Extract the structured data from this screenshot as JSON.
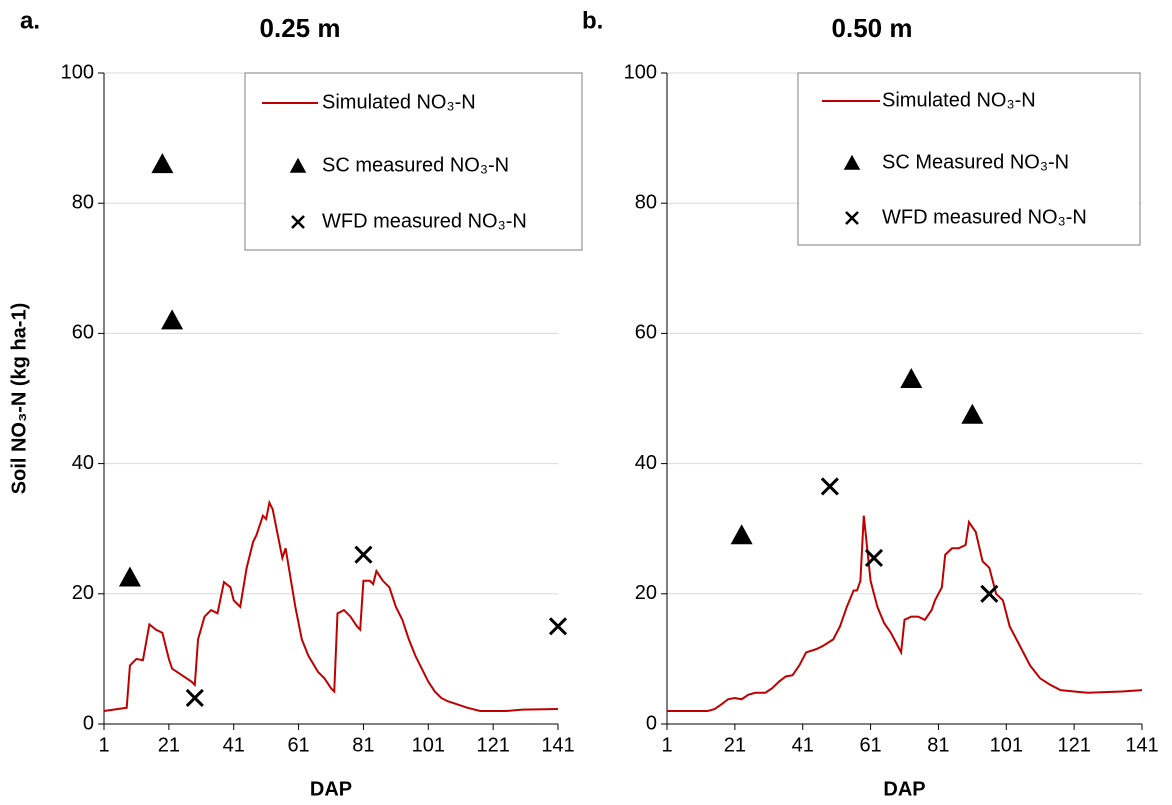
{
  "chart_data": [
    {
      "type": "line",
      "panel_label": "a.",
      "title": "0.25 m",
      "ylabel": "Soil NO₃-N (kg ha-1)",
      "xlabel": "DAP",
      "xlim": [
        1,
        141
      ],
      "xticks": [
        1,
        21,
        41,
        61,
        81,
        101,
        121,
        141
      ],
      "ylim": [
        0,
        100
      ],
      "yticks": [
        0,
        20,
        40,
        60,
        80,
        100
      ],
      "grid": true,
      "series": [
        {
          "name": "Simulated NO₃-N",
          "color": "#c00000",
          "marker": "line",
          "x": [
            1,
            8,
            9,
            11,
            13,
            15,
            17,
            19,
            21,
            22,
            25,
            28,
            29,
            30,
            32,
            34,
            36,
            38,
            40,
            41,
            43,
            45,
            47,
            48,
            50,
            51,
            52,
            53,
            55,
            56,
            57,
            58,
            60,
            62,
            64,
            67,
            69,
            71,
            72,
            73,
            75,
            77,
            79,
            80,
            81,
            83,
            84,
            85,
            87,
            89,
            91,
            93,
            95,
            97,
            99,
            101,
            103,
            105,
            107,
            110,
            113,
            117,
            125,
            130,
            141
          ],
          "values": [
            2,
            2.5,
            9,
            10,
            9.8,
            15.3,
            14.5,
            14,
            10,
            8.5,
            7.5,
            6.5,
            6,
            13,
            16.5,
            17.5,
            17,
            21.8,
            21,
            19,
            18,
            24,
            28,
            29,
            32,
            31.5,
            34,
            33,
            28,
            25.5,
            27,
            24,
            18,
            13,
            10.5,
            8,
            7,
            5.5,
            5,
            17,
            17.5,
            16.5,
            15,
            14.5,
            22,
            22,
            21.5,
            23.5,
            22,
            21,
            18,
            16,
            13,
            10.5,
            8.5,
            6.5,
            5,
            4,
            3.5,
            3,
            2.5,
            2,
            2,
            2.2,
            2.3
          ]
        },
        {
          "name": "SC measured NO₃-N",
          "color": "#000000",
          "marker": "triangle",
          "x": [
            9,
            19,
            22
          ],
          "values": [
            22.5,
            86,
            62
          ]
        },
        {
          "name": "WFD measured NO₃-N",
          "color": "#000000",
          "marker": "x",
          "x": [
            29,
            81,
            141
          ],
          "values": [
            4,
            26,
            15
          ]
        }
      ]
    },
    {
      "type": "line",
      "panel_label": "b.",
      "title": "0.50 m",
      "xlabel": "DAP",
      "xlim": [
        1,
        141
      ],
      "xticks": [
        1,
        21,
        41,
        61,
        81,
        101,
        121,
        141
      ],
      "ylim": [
        0,
        100
      ],
      "yticks": [
        0,
        20,
        40,
        60,
        80,
        100
      ],
      "grid": true,
      "series": [
        {
          "name": "Simulated NO₃-N",
          "color": "#c00000",
          "marker": "line",
          "x": [
            1,
            13,
            15,
            17,
            19,
            21,
            23,
            25,
            27,
            30,
            32,
            34,
            36,
            38,
            40,
            42,
            45,
            47,
            50,
            52,
            54,
            56,
            57,
            58,
            59,
            60,
            61,
            63,
            65,
            67,
            69,
            70,
            71,
            73,
            75,
            77,
            79,
            80,
            82,
            83,
            85,
            87,
            89,
            90,
            92,
            94,
            96,
            98,
            100,
            102,
            104,
            106,
            108,
            111,
            114,
            117,
            121,
            125,
            130,
            135,
            141
          ],
          "values": [
            2,
            2,
            2.3,
            3,
            3.8,
            4,
            3.8,
            4.5,
            4.8,
            4.8,
            5.5,
            6.5,
            7.3,
            7.5,
            9,
            11,
            11.5,
            12,
            13,
            15,
            18,
            20.5,
            20.5,
            22,
            32,
            27,
            22,
            18,
            15.5,
            14,
            12,
            11,
            16,
            16.5,
            16.5,
            16,
            17.5,
            19,
            21,
            26,
            27,
            27,
            27.5,
            31,
            29.5,
            25,
            24,
            20,
            19,
            15,
            13,
            11,
            9,
            7,
            6,
            5.2,
            5,
            4.8,
            4.9,
            5,
            5.2
          ]
        },
        {
          "name": "SC Measured NO₃-N",
          "color": "#000000",
          "marker": "triangle",
          "x": [
            23,
            73,
            91
          ],
          "values": [
            29,
            53,
            47.5
          ]
        },
        {
          "name": "WFD measured NO₃-N",
          "color": "#000000",
          "marker": "x",
          "x": [
            49,
            62,
            96
          ],
          "values": [
            36.5,
            25.5,
            20
          ]
        }
      ]
    }
  ]
}
